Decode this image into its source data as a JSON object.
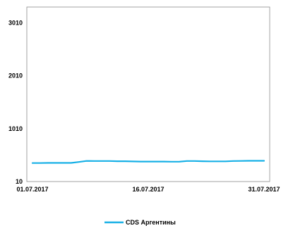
{
  "chart_data": {
    "type": "line",
    "title": "",
    "xlabel": "",
    "ylabel": "",
    "x_ticks": [
      "01.07.2017",
      "16.07.2017",
      "31.07.2017"
    ],
    "y_ticks": [
      10,
      1010,
      2010,
      3010
    ],
    "ylim": [
      10,
      3310
    ],
    "xlim": [
      "01.07.2017",
      "31.07.2017"
    ],
    "grid": false,
    "legend_position": "bottom-center",
    "series": [
      {
        "name": "CDS Аргентины",
        "color": "#17B0E6",
        "x": [
          "01.07.2017",
          "02.07.2017",
          "03.07.2017",
          "04.07.2017",
          "05.07.2017",
          "06.07.2017",
          "07.07.2017",
          "08.07.2017",
          "09.07.2017",
          "10.07.2017",
          "11.07.2017",
          "12.07.2017",
          "13.07.2017",
          "14.07.2017",
          "15.07.2017",
          "16.07.2017",
          "17.07.2017",
          "18.07.2017",
          "19.07.2017",
          "20.07.2017",
          "21.07.2017",
          "22.07.2017",
          "23.07.2017",
          "24.07.2017",
          "25.07.2017",
          "26.07.2017",
          "27.07.2017",
          "28.07.2017",
          "29.07.2017",
          "30.07.2017",
          "31.07.2017"
        ],
        "values": [
          360,
          360,
          362,
          362,
          362,
          362,
          380,
          400,
          398,
          398,
          398,
          395,
          395,
          390,
          388,
          388,
          388,
          388,
          385,
          385,
          398,
          398,
          395,
          392,
          392,
          392,
          398,
          400,
          402,
          402,
          402
        ]
      }
    ]
  }
}
